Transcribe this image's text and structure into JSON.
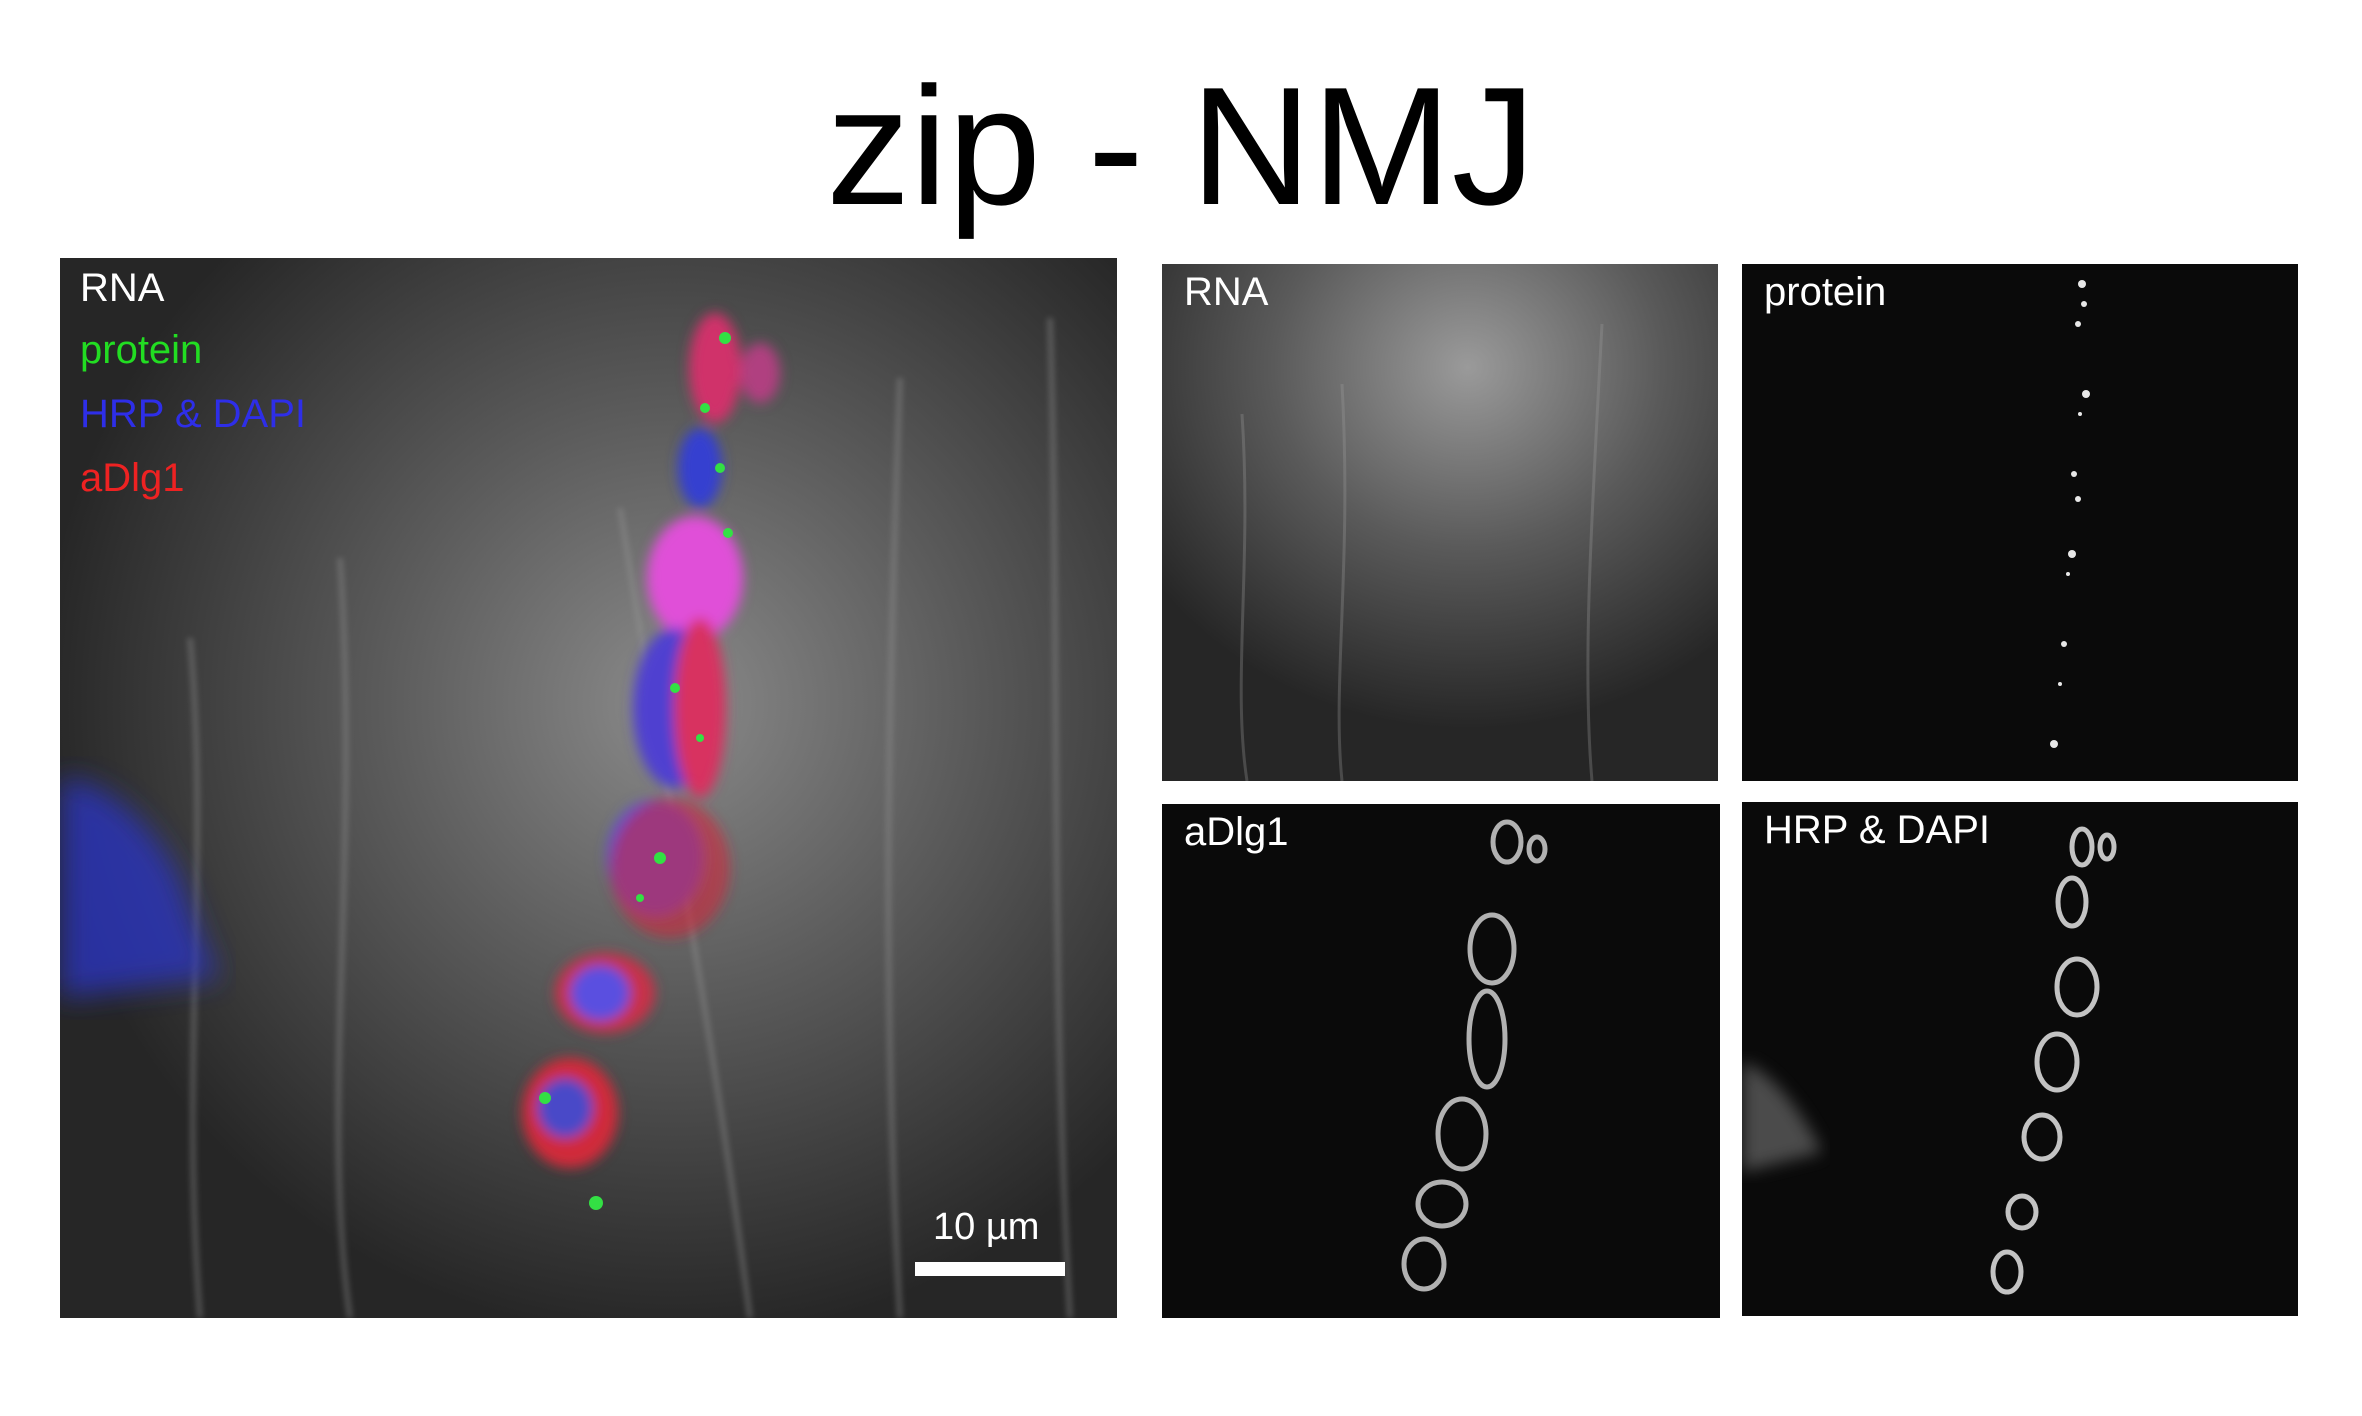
{
  "title": "zip - NMJ",
  "main_panel": {
    "legend": [
      {
        "text": "RNA",
        "color": "#ffffff"
      },
      {
        "text": "protein",
        "color": "#22dd22"
      },
      {
        "text": "HRP & DAPI",
        "color": "#2e2ee8"
      },
      {
        "text": "aDlg1",
        "color": "#ee2222"
      }
    ],
    "scale_bar_label": "10 µm"
  },
  "panels": {
    "rna": {
      "label": "RNA"
    },
    "protein": {
      "label": "protein"
    },
    "adlg1": {
      "label": "aDlg1"
    },
    "hrp": {
      "label": "HRP & DAPI"
    }
  }
}
